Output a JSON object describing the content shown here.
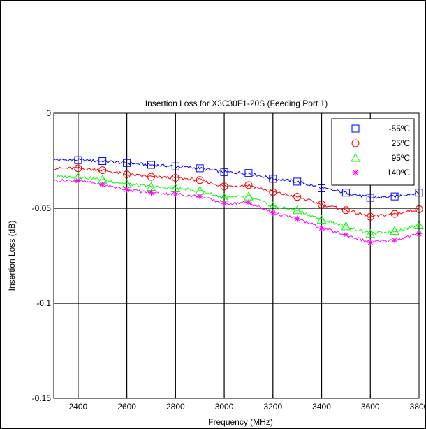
{
  "chart_data": {
    "type": "line",
    "title": "Insertion Loss for X3C30F1-20S (Feeding Port 1)",
    "xlabel": "Frequency (MHz)",
    "ylabel": "Insertion Loss (dB)",
    "xlim": [
      2300,
      3800
    ],
    "ylim": [
      -0.15,
      0
    ],
    "xticks": [
      2400,
      2600,
      2800,
      3000,
      3200,
      3400,
      3600,
      3800
    ],
    "xtick_labels": [
      "2400",
      "2600",
      "2800",
      "3000",
      "3200",
      "3400",
      "3600",
      "3800"
    ],
    "yticks": [
      0,
      -0.05,
      -0.1,
      -0.15
    ],
    "ytick_labels": [
      "0",
      "-0.05",
      "-0.1",
      "-0.15"
    ],
    "grid": true,
    "legend_position": "top-right",
    "x": [
      2300,
      2400,
      2500,
      2600,
      2700,
      2800,
      2900,
      3000,
      3100,
      3200,
      3300,
      3400,
      3500,
      3600,
      3700,
      3800
    ],
    "marker_x": [
      2400,
      2500,
      2600,
      2700,
      2800,
      2900,
      3000,
      3100,
      3200,
      3300,
      3400,
      3500,
      3600,
      3700,
      3800
    ],
    "series": [
      {
        "name": "-55ºC",
        "color": "#0000ff",
        "marker": "square",
        "values": [
          -0.0245,
          -0.0247,
          -0.0252,
          -0.0262,
          -0.0272,
          -0.028,
          -0.029,
          -0.031,
          -0.0315,
          -0.0345,
          -0.036,
          -0.0395,
          -0.0418,
          -0.0445,
          -0.0438,
          -0.0418
        ]
      },
      {
        "name": "25ºC",
        "color": "#ff0000",
        "marker": "circle",
        "values": [
          -0.029,
          -0.029,
          -0.03,
          -0.0322,
          -0.0335,
          -0.034,
          -0.0352,
          -0.0385,
          -0.0378,
          -0.0415,
          -0.044,
          -0.048,
          -0.051,
          -0.0545,
          -0.053,
          -0.0505
        ]
      },
      {
        "name": "95ºC",
        "color": "#00ff00",
        "marker": "triangle",
        "values": [
          -0.0335,
          -0.0335,
          -0.035,
          -0.0372,
          -0.0388,
          -0.0395,
          -0.0408,
          -0.0445,
          -0.0438,
          -0.049,
          -0.051,
          -0.056,
          -0.0595,
          -0.0635,
          -0.062,
          -0.059
        ]
      },
      {
        "name": "140ºC",
        "color": "#ff00ff",
        "marker": "asterisk",
        "values": [
          -0.0355,
          -0.0355,
          -0.0375,
          -0.0402,
          -0.0418,
          -0.0425,
          -0.0438,
          -0.0475,
          -0.047,
          -0.0525,
          -0.0555,
          -0.0605,
          -0.064,
          -0.068,
          -0.0668,
          -0.0635
        ]
      }
    ]
  }
}
